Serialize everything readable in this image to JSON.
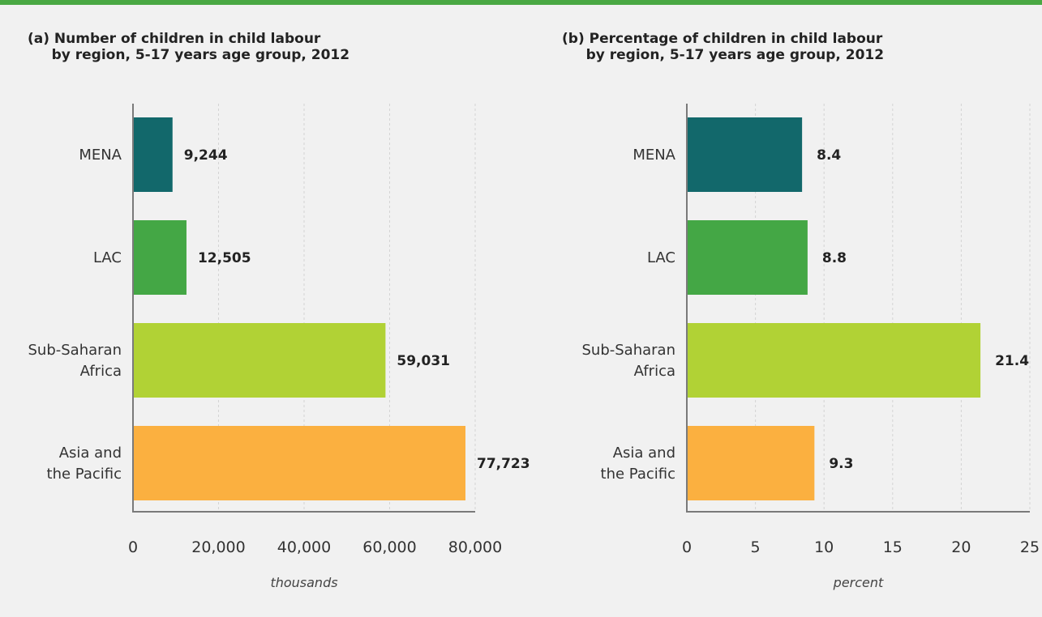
{
  "chart_data": [
    {
      "type": "bar",
      "orientation": "horizontal",
      "title": "(a) Number of children in child labour\n     by region, 5-17 years age group, 2012",
      "categories": [
        "MENA",
        "LAC",
        "Sub-Saharan\nAfrica",
        "Asia and\nthe Pacific"
      ],
      "values": [
        9244,
        12505,
        59031,
        77723
      ],
      "value_labels": [
        "9,244",
        "12,505",
        "59,031",
        "77,723"
      ],
      "colors": [
        "#12686b",
        "#44a745",
        "#b1d235",
        "#fbb040"
      ],
      "xlabel": "thousands",
      "xlim": [
        0,
        80000
      ],
      "xticks": [
        0,
        20000,
        40000,
        60000,
        80000
      ],
      "xtick_labels": [
        "0",
        "20,000",
        "40,000",
        "60,000",
        "80,000"
      ],
      "grid": "vertical dashed",
      "legend": "none"
    },
    {
      "type": "bar",
      "orientation": "horizontal",
      "title": "(b) Percentage of children in child labour\n     by region, 5-17 years age group, 2012",
      "categories": [
        "MENA",
        "LAC",
        "Sub-Saharan\nAfrica",
        "Asia and\nthe Pacific"
      ],
      "values": [
        8.4,
        8.8,
        21.4,
        9.3
      ],
      "value_labels": [
        "8.4",
        "8.8",
        "21.4",
        "9.3"
      ],
      "colors": [
        "#12686b",
        "#44a745",
        "#b1d235",
        "#fbb040"
      ],
      "xlabel": "percent",
      "xlim": [
        0,
        25
      ],
      "xticks": [
        0,
        5,
        10,
        15,
        20,
        25
      ],
      "xtick_labels": [
        "0",
        "5",
        "10",
        "15",
        "20",
        "25"
      ],
      "grid": "vertical dashed",
      "legend": "none"
    }
  ]
}
